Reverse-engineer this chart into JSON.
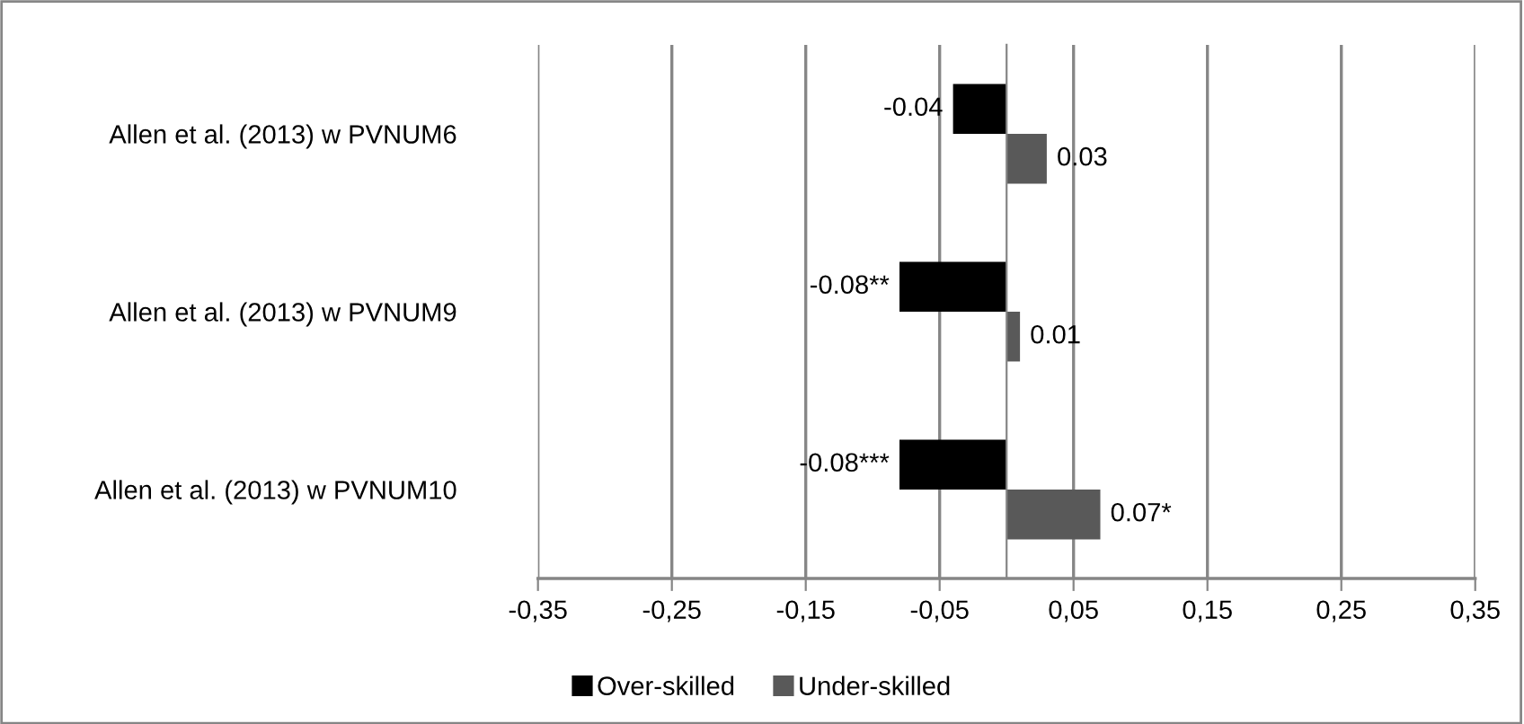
{
  "chart_data": {
    "type": "bar",
    "orientation": "horizontal",
    "categories": [
      "Allen et al. (2013) w PVNUM6",
      "Allen et al. (2013) w PVNUM9",
      "Allen et al. (2013) w PVNUM10"
    ],
    "series": [
      {
        "name": "Over-skilled",
        "color": "#000000",
        "values": [
          -0.04,
          -0.08,
          -0.08
        ],
        "value_labels": [
          "-0.04",
          "-0.08**",
          "-0.08***"
        ]
      },
      {
        "name": "Under-skilled",
        "color": "#595959",
        "values": [
          0.03,
          0.01,
          0.07
        ],
        "value_labels": [
          "0.03",
          "0.01",
          "0.07*"
        ]
      }
    ],
    "xlim": [
      -0.35,
      0.35
    ],
    "xticks": [
      {
        "value": -0.35,
        "label": "-0,35"
      },
      {
        "value": -0.25,
        "label": "-0,25"
      },
      {
        "value": -0.15,
        "label": "-0,15"
      },
      {
        "value": -0.05,
        "label": "-0,05"
      },
      {
        "value": 0.05,
        "label": "0,05"
      },
      {
        "value": 0.15,
        "label": "0,15"
      },
      {
        "value": 0.25,
        "label": "0,25"
      },
      {
        "value": 0.35,
        "label": "0,35"
      }
    ],
    "grid": "x",
    "legend": "bottom"
  }
}
